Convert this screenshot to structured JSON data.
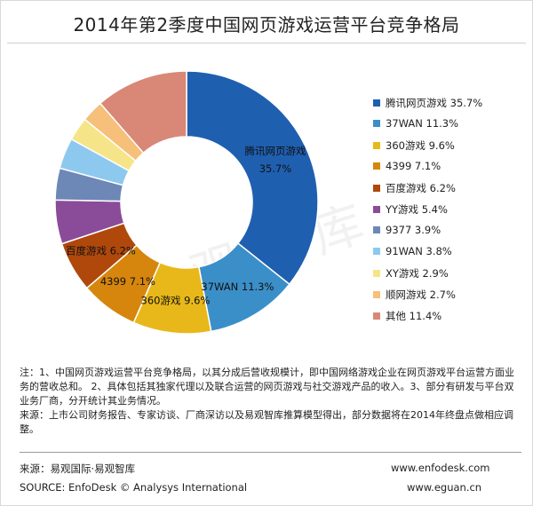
{
  "title": "2014年第2季度中国网页游戏运营平台竞争格局",
  "chart_data": {
    "type": "pie",
    "subtype": "donut",
    "title": "2014年第2季度中国网页游戏运营平台竞争格局",
    "unit": "%",
    "legend_position": "right",
    "slices": [
      {
        "name": "腾讯网页游戏",
        "value": 35.7,
        "label": "35.7%",
        "color": "#1f5fb0"
      },
      {
        "name": "37WAN",
        "value": 11.3,
        "label": "11.3%",
        "color": "#3b8fc8"
      },
      {
        "name": "360游戏",
        "value": 9.6,
        "label": "9.6%",
        "color": "#e8b81a"
      },
      {
        "name": "4399",
        "value": 7.1,
        "label": "7.1%",
        "color": "#d6860d"
      },
      {
        "name": "百度游戏",
        "value": 6.2,
        "label": "6.2%",
        "color": "#b0480c"
      },
      {
        "name": "YY游戏",
        "value": 5.4,
        "label": "5.4%",
        "color": "#8a4c98"
      },
      {
        "name": "9377",
        "value": 3.9,
        "label": "3.9%",
        "color": "#6d87b6"
      },
      {
        "name": "91WAN",
        "value": 3.8,
        "label": "3.8%",
        "color": "#8dc9ef"
      },
      {
        "name": "XY游戏",
        "value": 2.9,
        "label": "2.9%",
        "color": "#f6e488"
      },
      {
        "name": "顺网游戏",
        "value": 2.7,
        "label": "2.7%",
        "color": "#f6bf7a"
      },
      {
        "name": "其他",
        "value": 11.4,
        "label": "11.4%",
        "color": "#d98776"
      }
    ],
    "data_labels": [
      {
        "slice": 0,
        "name": "腾讯网页游戏",
        "value": "35.7%"
      },
      {
        "slice": 1,
        "name": "37WAN",
        "value": "11.3%"
      },
      {
        "slice": 2,
        "name": "360游戏",
        "value": "9.6%"
      },
      {
        "slice": 3,
        "name": "4399",
        "value": "7.1%"
      },
      {
        "slice": 4,
        "name": "百度游戏",
        "value": "6.2%"
      }
    ]
  },
  "notes": {
    "line1": "注：1、中国网页游戏运营平台竞争格局，以其分成后营收规模计，即中国网络游戏企业在网页游戏平台运营方面业务的营收总和。 2、具体包括其独家代理以及联合运营的网页游戏与社交游戏产品的收入。3、部分有研发与平台双业务厂商，分开统计其业务情况。",
    "line2": "来源：上市公司财务报告、专家访谈、厂商深访以及易观智库推算模型得出，部分数据将在2014年终盘点做相应调整。"
  },
  "footer": {
    "source_cn": "来源：易观国际·易观智库",
    "website1": "www.enfodesk.com",
    "source_en": "SOURCE: EnfoDesk © Analysys International",
    "website2": "www.eguan.cn"
  },
  "watermark": "易观智库"
}
